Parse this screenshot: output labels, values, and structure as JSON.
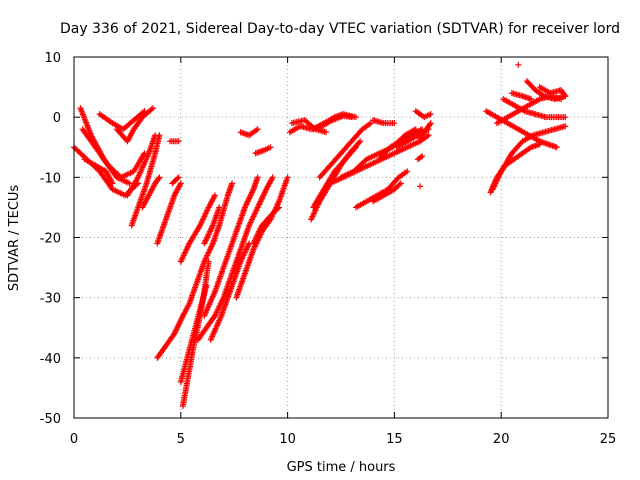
{
  "chart_data": {
    "type": "scatter",
    "title": "Day 336 of 2021, Sidereal Day-to-day VTEC variation (SDTVAR) for receiver lord",
    "xlabel": "GPS time / hours",
    "ylabel": "SDTVAR / TECUs",
    "xlim": [
      0,
      25
    ],
    "ylim": [
      -50,
      10
    ],
    "xticks": [
      "0",
      "5",
      "10",
      "15",
      "20",
      "25"
    ],
    "yticks": [
      "10",
      "0",
      "-10",
      "-20",
      "-30",
      "-40",
      "-50"
    ],
    "grid": true,
    "marker": "+",
    "marker_color": "#ff0000",
    "tracks": [
      [
        [
          0.0,
          -5
        ],
        [
          0.6,
          -7
        ],
        [
          1.2,
          -9
        ],
        [
          1.8,
          -12
        ],
        [
          2.4,
          -13
        ],
        [
          3.0,
          -11
        ]
      ],
      [
        [
          0.3,
          1.5
        ],
        [
          0.8,
          -3
        ],
        [
          1.4,
          -7
        ],
        [
          2.0,
          -10
        ],
        [
          2.6,
          -11
        ]
      ],
      [
        [
          0.4,
          -2
        ],
        [
          1.0,
          -5
        ],
        [
          1.6,
          -8
        ],
        [
          2.2,
          -10
        ],
        [
          2.8,
          -9
        ],
        [
          3.3,
          -6
        ]
      ],
      [
        [
          0.5,
          -7
        ],
        [
          1.0,
          -8
        ],
        [
          1.5,
          -9
        ],
        [
          1.8,
          -11
        ]
      ],
      [
        [
          1.2,
          0.5
        ],
        [
          1.8,
          -1
        ],
        [
          2.3,
          -2
        ],
        [
          2.8,
          -0.5
        ],
        [
          3.3,
          1
        ]
      ],
      [
        [
          2.0,
          -2
        ],
        [
          2.5,
          -4
        ],
        [
          2.8,
          -2
        ],
        [
          3.2,
          0
        ],
        [
          3.7,
          1.5
        ]
      ],
      [
        [
          2.7,
          -18
        ],
        [
          3.0,
          -15
        ],
        [
          3.4,
          -11
        ],
        [
          3.8,
          -6
        ],
        [
          4.0,
          -3
        ]
      ],
      [
        [
          2.5,
          -13
        ],
        [
          3.0,
          -10
        ],
        [
          3.5,
          -6
        ],
        [
          3.8,
          -3
        ]
      ],
      [
        [
          3.2,
          -15
        ],
        [
          3.5,
          -13
        ],
        [
          3.8,
          -11
        ],
        [
          4.0,
          -10
        ]
      ],
      [
        [
          3.9,
          -21
        ],
        [
          4.3,
          -17
        ],
        [
          4.7,
          -13
        ],
        [
          5.0,
          -11
        ]
      ],
      [
        [
          4.6,
          -11
        ],
        [
          4.9,
          -10
        ]
      ],
      [
        [
          4.5,
          -4
        ],
        [
          4.9,
          -4
        ]
      ],
      [
        [
          3.9,
          -40
        ],
        [
          4.3,
          -38
        ],
        [
          4.7,
          -36
        ],
        [
          5.1,
          -33
        ],
        [
          5.4,
          -31
        ],
        [
          5.8,
          -27
        ],
        [
          6.1,
          -24
        ],
        [
          6.5,
          -21
        ],
        [
          6.8,
          -18
        ],
        [
          7.2,
          -13
        ],
        [
          7.4,
          -11
        ]
      ],
      [
        [
          5.1,
          -48
        ],
        [
          5.3,
          -44
        ],
        [
          5.6,
          -38
        ],
        [
          5.9,
          -33
        ],
        [
          6.1,
          -29
        ],
        [
          6.3,
          -24
        ]
      ],
      [
        [
          5.0,
          -44
        ],
        [
          5.3,
          -40
        ],
        [
          5.6,
          -36
        ],
        [
          5.9,
          -32
        ],
        [
          6.2,
          -28
        ]
      ],
      [
        [
          5.0,
          -24
        ],
        [
          5.4,
          -21
        ],
        [
          5.9,
          -18
        ],
        [
          6.3,
          -15
        ],
        [
          6.6,
          -13
        ]
      ],
      [
        [
          6.1,
          -21
        ],
        [
          6.5,
          -18
        ],
        [
          6.8,
          -15
        ]
      ],
      [
        [
          5.8,
          -37
        ],
        [
          6.2,
          -35
        ],
        [
          6.6,
          -33
        ],
        [
          7.0,
          -30
        ],
        [
          7.4,
          -26
        ],
        [
          7.8,
          -22
        ],
        [
          8.2,
          -18
        ],
        [
          8.6,
          -15
        ],
        [
          9.0,
          -12
        ],
        [
          9.3,
          -10
        ]
      ],
      [
        [
          6.1,
          -33
        ],
        [
          6.6,
          -29
        ],
        [
          7.1,
          -24
        ],
        [
          7.6,
          -19
        ],
        [
          8.0,
          -15
        ],
        [
          8.4,
          -12
        ],
        [
          8.6,
          -10
        ]
      ],
      [
        [
          6.4,
          -37
        ],
        [
          6.9,
          -33
        ],
        [
          7.3,
          -29
        ],
        [
          7.8,
          -24
        ],
        [
          8.2,
          -21
        ]
      ],
      [
        [
          7.6,
          -30
        ],
        [
          8.0,
          -26
        ],
        [
          8.4,
          -22
        ],
        [
          8.8,
          -19
        ],
        [
          9.2,
          -17
        ],
        [
          9.6,
          -14
        ],
        [
          10.0,
          -10
        ]
      ],
      [
        [
          8.4,
          -21
        ],
        [
          8.8,
          -18
        ],
        [
          9.3,
          -16
        ],
        [
          9.6,
          -15
        ]
      ],
      [
        [
          7.8,
          -2.5
        ],
        [
          8.2,
          -3
        ],
        [
          8.6,
          -2
        ]
      ],
      [
        [
          8.5,
          -6
        ],
        [
          8.9,
          -5.5
        ],
        [
          9.2,
          -5
        ]
      ],
      [
        [
          10.1,
          -2.5
        ],
        [
          10.6,
          -1.5
        ],
        [
          11.1,
          -2
        ],
        [
          11.6,
          -1.5
        ],
        [
          12.1,
          -0.5
        ],
        [
          12.6,
          0.2
        ],
        [
          13.0,
          0
        ]
      ],
      [
        [
          10.2,
          -1
        ],
        [
          10.8,
          -0.5
        ],
        [
          11.3,
          -2
        ],
        [
          11.8,
          -2.5
        ]
      ],
      [
        [
          11.2,
          -2
        ],
        [
          11.7,
          -1
        ],
        [
          12.2,
          0
        ],
        [
          12.6,
          0.5
        ],
        [
          13.2,
          0
        ]
      ],
      [
        [
          11.1,
          -17
        ],
        [
          11.5,
          -14
        ],
        [
          12.0,
          -11
        ],
        [
          12.5,
          -8
        ],
        [
          12.9,
          -6
        ],
        [
          13.4,
          -4
        ]
      ],
      [
        [
          11.2,
          -15
        ],
        [
          11.7,
          -12
        ],
        [
          12.2,
          -9
        ],
        [
          12.7,
          -7
        ],
        [
          13.2,
          -5
        ]
      ],
      [
        [
          11.5,
          -10
        ],
        [
          12.0,
          -8
        ],
        [
          12.5,
          -6
        ],
        [
          13.0,
          -4
        ],
        [
          13.5,
          -2
        ],
        [
          13.9,
          -1
        ]
      ],
      [
        [
          12.0,
          -11
        ],
        [
          12.6,
          -10
        ],
        [
          13.2,
          -9
        ],
        [
          13.8,
          -8
        ],
        [
          14.4,
          -7
        ],
        [
          15.0,
          -6
        ],
        [
          15.6,
          -5
        ],
        [
          16.2,
          -4
        ],
        [
          16.6,
          -3
        ]
      ],
      [
        [
          12.5,
          -10
        ],
        [
          13.1,
          -9
        ],
        [
          13.7,
          -7
        ],
        [
          14.3,
          -6
        ],
        [
          14.9,
          -5
        ],
        [
          15.5,
          -3
        ],
        [
          16.0,
          -2
        ]
      ],
      [
        [
          13.2,
          -15
        ],
        [
          13.7,
          -14
        ],
        [
          14.2,
          -13
        ],
        [
          14.7,
          -12
        ],
        [
          15.2,
          -10
        ],
        [
          15.6,
          -9
        ]
      ],
      [
        [
          14.0,
          -14
        ],
        [
          14.5,
          -13
        ],
        [
          15.0,
          -12
        ],
        [
          15.3,
          -11
        ]
      ],
      [
        [
          14.3,
          -7
        ],
        [
          14.8,
          -5
        ],
        [
          15.3,
          -4
        ],
        [
          15.8,
          -3
        ],
        [
          16.3,
          -2
        ]
      ],
      [
        [
          14.0,
          -0.5
        ],
        [
          14.5,
          -1
        ],
        [
          15.0,
          -1
        ]
      ],
      [
        [
          15.1,
          -5
        ],
        [
          15.6,
          -4
        ],
        [
          16.1,
          -3
        ],
        [
          16.6,
          -2
        ]
      ],
      [
        [
          16.0,
          1
        ],
        [
          16.4,
          0
        ],
        [
          16.7,
          0.5
        ]
      ],
      [
        [
          16.1,
          -7
        ],
        [
          16.3,
          -6.5
        ]
      ],
      [
        [
          16.2,
          -3.5
        ],
        [
          16.5,
          -2
        ],
        [
          16.7,
          -1
        ]
      ],
      [
        [
          16.2,
          -11.5
        ]
      ],
      [
        [
          19.5,
          -12.5
        ],
        [
          19.8,
          -10
        ],
        [
          20.2,
          -8
        ],
        [
          20.6,
          -7
        ],
        [
          21.0,
          -6
        ],
        [
          21.4,
          -5
        ],
        [
          21.8,
          -4.5
        ]
      ],
      [
        [
          19.6,
          -12
        ],
        [
          20.0,
          -9
        ],
        [
          20.5,
          -6
        ],
        [
          21.0,
          -4
        ],
        [
          21.5,
          -3
        ],
        [
          22.0,
          -2.5
        ],
        [
          22.5,
          -2
        ],
        [
          23.0,
          -1.5
        ]
      ],
      [
        [
          19.3,
          1
        ],
        [
          19.8,
          0
        ],
        [
          20.3,
          -1
        ],
        [
          20.8,
          -2
        ],
        [
          21.3,
          -3
        ],
        [
          21.8,
          -4
        ],
        [
          22.2,
          -4.5
        ],
        [
          22.6,
          -5
        ]
      ],
      [
        [
          19.8,
          -1
        ],
        [
          20.3,
          0
        ],
        [
          20.8,
          1
        ],
        [
          21.3,
          2
        ],
        [
          21.8,
          3
        ],
        [
          22.3,
          3.5
        ],
        [
          22.8,
          3
        ]
      ],
      [
        [
          20.1,
          3
        ],
        [
          20.6,
          2
        ],
        [
          21.1,
          1
        ],
        [
          21.6,
          0.5
        ],
        [
          22.1,
          0
        ],
        [
          22.6,
          0
        ],
        [
          23.0,
          0
        ]
      ],
      [
        [
          21.2,
          6
        ],
        [
          21.6,
          4.5
        ],
        [
          22.0,
          3.5
        ],
        [
          22.5,
          3
        ],
        [
          23.0,
          3.5
        ]
      ],
      [
        [
          21.8,
          5
        ],
        [
          22.3,
          4
        ],
        [
          22.8,
          4.5
        ],
        [
          23.0,
          3.5
        ]
      ],
      [
        [
          20.5,
          4
        ],
        [
          21.0,
          3.5
        ],
        [
          21.4,
          3
        ]
      ],
      [
        [
          20.8,
          8.7
        ]
      ]
    ]
  }
}
